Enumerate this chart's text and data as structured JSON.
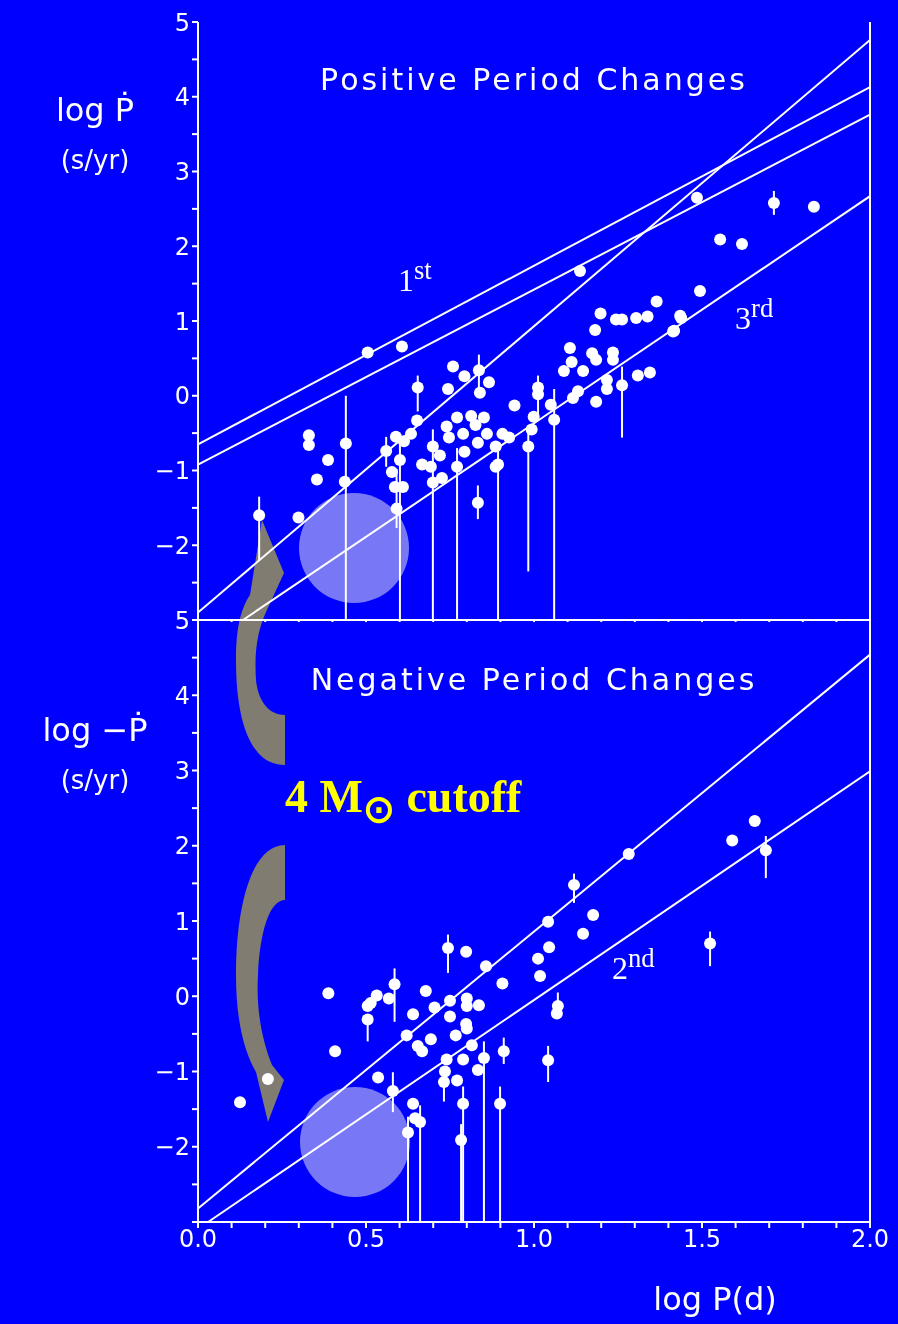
{
  "chart_data": [
    {
      "type": "scatter",
      "title": "Positive Period Changes",
      "ylabel": "log Ṗ (s/yr)",
      "tick_labels": "y",
      "marker": "circle",
      "xlim": [
        0,
        2
      ],
      "ylim": [
        -3,
        5
      ],
      "xticks": [
        {
          "value": 0,
          "label": null
        },
        {
          "value": 0.1,
          "label": null
        },
        {
          "value": 0.2,
          "label": null
        },
        {
          "value": 0.3,
          "label": null
        },
        {
          "value": 0.4,
          "label": null
        },
        {
          "value": 0.5,
          "label": null
        },
        {
          "value": 0.6,
          "label": null
        },
        {
          "value": 0.7,
          "label": null
        },
        {
          "value": 0.8,
          "label": null
        },
        {
          "value": 0.9,
          "label": null
        },
        {
          "value": 1,
          "label": null
        },
        {
          "value": 1.1,
          "label": null
        },
        {
          "value": 1.2,
          "label": null
        },
        {
          "value": 1.3,
          "label": null
        },
        {
          "value": 1.4,
          "label": null
        },
        {
          "value": 1.5,
          "label": null
        },
        {
          "value": 1.6,
          "label": null
        },
        {
          "value": 1.7,
          "label": null
        },
        {
          "value": 1.8,
          "label": null
        },
        {
          "value": 1.9,
          "label": null
        },
        {
          "value": 2,
          "label": null
        }
      ],
      "yticks": [
        {
          "value": -3,
          "label": null
        },
        {
          "value": -2.5,
          "label": null
        },
        {
          "value": -2,
          "label": "−2"
        },
        {
          "value": -1.5,
          "label": null
        },
        {
          "value": -1,
          "label": "−1"
        },
        {
          "value": -0.5,
          "label": null
        },
        0,
        {
          "value": 0.5,
          "label": null
        },
        1,
        {
          "value": 1.5,
          "label": null
        },
        2,
        {
          "value": 2.5,
          "label": null
        },
        3,
        {
          "value": 3.5,
          "label": null
        },
        4,
        {
          "value": 4.5,
          "label": null
        },
        5
      ],
      "annotations": [
        "1$^{st}$",
        "3$^{rd}$"
      ],
      "series": [
        {
          "type": "scatter",
          "color": "#ffffff",
          "x": [
            1.485,
            1.714,
            1.833,
            1.554,
            1.619,
            1.137,
            1.494,
            1.438,
            1.414,
            1.198,
            1.244,
            1.262,
            1.304,
            1.338,
            1.365,
            1.435,
            1.417,
            1.182,
            1.107,
            1.112,
            1.089,
            1.146,
            1.173,
            1.185,
            1.235,
            1.235,
            1.309,
            1.345,
            1.217,
            1.262,
            1.217,
            1.131,
            1.116,
            1.185,
            0.505,
            0.607,
            0.654,
            0.744,
            0.759,
            0.793,
            0.836,
            0.839,
            0.866,
            0.942,
            1.012,
            1.012,
            1.05,
            1.06,
            0.999,
            0.993,
            0.983,
            0.33,
            0.33,
            0.387,
            0.44,
            0.437,
            0.354,
            0.182,
            0.299,
            0.56,
            0.589,
            0.601,
            0.61,
            0.586,
            0.591,
            0.577,
            0.613,
            0.634,
            0.652,
            0.699,
            0.693,
            0.699,
            0.726,
            0.667,
            0.72,
            0.74,
            0.747,
            0.771,
            0.771,
            0.789,
            0.793,
            0.813,
            0.826,
            0.833,
            0.851,
            0.86,
            0.886,
            0.893,
            0.906,
            0.926,
            0.886,
            0.833
          ],
          "values": [
            2.65,
            2.58,
            2.53,
            2.09,
            2.03,
            1.67,
            1.4,
            1.04,
            0.86,
            1.1,
            1.02,
            1.02,
            1.04,
            1.06,
            1.26,
            1.07,
            0.87,
            0.88,
            0.64,
            0.45,
            0.33,
            0.33,
            0.57,
            0.48,
            0.58,
            0.48,
            0.27,
            0.31,
            0.21,
            0.14,
            0.09,
            0.06,
            -0.03,
            -0.08,
            0.58,
            0.66,
            0.11,
            0.09,
            0.39,
            0.26,
            0.34,
            0.04,
            0.18,
            -0.13,
            0.11,
            0.02,
            -0.12,
            -0.32,
            -0.28,
            -0.45,
            -0.68,
            -0.53,
            -0.66,
            -0.86,
            -0.64,
            -1.15,
            -1.12,
            -1.6,
            -1.63,
            -0.74,
            -0.55,
            -0.86,
            -1.22,
            -1.22,
            -1.51,
            -1.02,
            -0.61,
            -0.51,
            -0.33,
            -0.68,
            -0.95,
            -1.16,
            -1.1,
            -0.92,
            -0.8,
            -0.41,
            -0.56,
            -0.29,
            -0.95,
            -0.51,
            -0.75,
            -0.27,
            -0.39,
            -0.63,
            -0.29,
            -0.51,
            -0.68,
            -0.92,
            -0.51,
            -0.56,
            -0.95,
            -1.43
          ],
          "errors": [
            null,
            [
              2.42,
              2.74
            ],
            null,
            null,
            null,
            null,
            null,
            null,
            null,
            null,
            null,
            null,
            null,
            null,
            null,
            null,
            null,
            null,
            null,
            null,
            null,
            null,
            null,
            null,
            null,
            null,
            null,
            null,
            null,
            [
              -0.56,
              0.39
            ],
            null,
            null,
            null,
            null,
            null,
            null,
            [
              -0.21,
              0.27
            ],
            null,
            null,
            null,
            [
              0.1,
              0.55
            ],
            null,
            null,
            null,
            [
              -0.27,
              0.27
            ],
            null,
            null,
            [
              -3,
              0.09
            ],
            null,
            null,
            [
              -2.35,
              -0.45
            ],
            null,
            null,
            null,
            [
              -3,
              0
            ],
            null,
            null,
            [
              -2.2,
              -1.35
            ],
            null,
            [
              -0.95,
              -0.55
            ],
            null,
            [
              -3,
              -0.6
            ],
            null,
            null,
            [
              -1.77,
              -0.98
            ],
            null,
            null,
            null,
            null,
            [
              -3,
              -0.45
            ],
            null,
            null,
            null,
            null,
            null,
            null,
            null,
            null,
            [
              -3,
              -0.7
            ],
            null,
            null,
            null,
            null,
            null,
            null,
            null,
            null,
            [
              -3,
              -0.7
            ],
            null,
            null,
            null,
            [
              -1.65,
              -1.2
            ]
          ]
        },
        {
          "type": "line",
          "color": "#ffffff",
          "line_style": "solid",
          "marker": "none",
          "x": [
            0,
            2
          ],
          "values": [
            -0.65,
            4.13
          ]
        },
        {
          "type": "line",
          "color": "#ffffff",
          "line_style": "solid",
          "marker": "none",
          "x": [
            0,
            2
          ],
          "values": [
            -0.92,
            3.76
          ]
        },
        {
          "type": "line",
          "color": "#ffffff",
          "line_style": "solid",
          "marker": "none",
          "x": [
            0,
            2
          ],
          "values": [
            -2.9,
            4.76
          ]
        },
        {
          "type": "line",
          "color": "#ffffff",
          "line_style": "solid",
          "marker": "none",
          "x": [
            0.134,
            2
          ],
          "values": [
            -3,
            2.67
          ]
        }
      ]
    },
    {
      "type": "scatter",
      "title": "Negative Period Changes",
      "ylabel": "log −Ṗ (s/yr)",
      "xlabel": "log P(d)",
      "marker": "circle",
      "xlim": [
        0,
        2
      ],
      "ylim": [
        -3,
        5
      ],
      "xticks": [
        {
          "value": 0,
          "label": "0.0"
        },
        {
          "value": 0.1,
          "label": null
        },
        {
          "value": 0.2,
          "label": null
        },
        {
          "value": 0.3,
          "label": null
        },
        {
          "value": 0.4,
          "label": null
        },
        {
          "value": 0.5,
          "label": "0.5"
        },
        {
          "value": 0.6,
          "label": null
        },
        {
          "value": 0.7,
          "label": null
        },
        {
          "value": 0.8,
          "label": null
        },
        {
          "value": 0.9,
          "label": null
        },
        {
          "value": 1,
          "label": "1.0"
        },
        {
          "value": 1.1,
          "label": null
        },
        {
          "value": 1.2,
          "label": null
        },
        {
          "value": 1.3,
          "label": null
        },
        {
          "value": 1.4,
          "label": null
        },
        {
          "value": 1.5,
          "label": "1.5"
        },
        {
          "value": 1.6,
          "label": null
        },
        {
          "value": 1.7,
          "label": null
        },
        {
          "value": 1.8,
          "label": null
        },
        {
          "value": 1.9,
          "label": null
        },
        {
          "value": 2,
          "label": "2.0"
        }
      ],
      "yticks": [
        {
          "value": -3,
          "label": null
        },
        {
          "value": -2.5,
          "label": null
        },
        {
          "value": -2,
          "label": "−2"
        },
        {
          "value": -1.5,
          "label": null
        },
        {
          "value": -1,
          "label": "−1"
        },
        {
          "value": -0.5,
          "label": null
        },
        0,
        {
          "value": 0.5,
          "label": null
        },
        1,
        {
          "value": 1.5,
          "label": null
        },
        2,
        {
          "value": 2.5,
          "label": null
        },
        3,
        {
          "value": 3.5,
          "label": null
        },
        4,
        {
          "value": 4.5,
          "label": null
        },
        5
      ],
      "annotations": [
        "2$^{nd}$",
        "4 M$_{⊙}$ cutoff"
      ],
      "series": [
        {
          "type": "scatter",
          "color": "#ffffff",
          "x": [
            1.282,
            1.59,
            1.657,
            1.69,
            1.119,
            1.176,
            1.042,
            1.146,
            1.524,
            1.045,
            1.012,
            1.018,
            1.071,
            1.068,
            1.042,
            0.906,
            0.857,
            0.798,
            0.744,
            0.678,
            0.585,
            0.568,
            0.532,
            0.514,
            0.505,
            0.505,
            0.388,
            0.408,
            0.125,
            0.208,
            0.536,
            0.58,
            0.64,
            0.704,
            0.75,
            0.75,
            0.8,
            0.8,
            0.836,
            0.798,
            0.8,
            0.693,
            0.621,
            0.654,
            0.667,
            0.767,
            0.815,
            0.74,
            0.789,
            0.851,
            0.91,
            0.833,
            0.735,
            0.732,
            0.771,
            0.789,
            0.899,
            0.64,
            0.646,
            0.661,
            0.625,
            0.783
          ],
          "values": [
            1.89,
            2.07,
            2.33,
            1.94,
            1.48,
            1.08,
            0.99,
            0.83,
            0.7,
            0.65,
            0.5,
            0.27,
            -0.13,
            -0.23,
            -0.85,
            0.17,
            0.4,
            0.59,
            0.64,
            0.07,
            0.16,
            -0.03,
            0.01,
            -0.09,
            -0.13,
            -0.31,
            0.04,
            -0.73,
            -1.41,
            -1.1,
            -1.08,
            -1.26,
            -0.24,
            -0.15,
            -0.06,
            -0.27,
            -0.03,
            -0.13,
            -0.12,
            -0.37,
            -0.43,
            -0.57,
            -0.52,
            -0.66,
            -0.73,
            -0.52,
            -0.65,
            -0.84,
            -0.84,
            -0.82,
            -0.73,
            -0.98,
            -1.0,
            -1.14,
            -1.12,
            -1.43,
            -1.43,
            -1.43,
            -1.62,
            -1.67,
            -1.81,
            -1.91
          ],
          "errors": [
            null,
            null,
            null,
            [
              1.57,
              2.13
            ],
            [
              1.24,
              1.63
            ],
            null,
            null,
            null,
            [
              0.4,
              0.86
            ],
            null,
            null,
            null,
            [
              -0.3,
              0.05
            ],
            null,
            [
              -1.14,
              -0.66
            ],
            null,
            null,
            null,
            [
              0.31,
              0.82
            ],
            null,
            [
              -0.34,
              0.37
            ],
            null,
            null,
            null,
            null,
            [
              -0.6,
              -0.31
            ],
            null,
            null,
            null,
            null,
            null,
            [
              -1.54,
              -1.01
            ],
            null,
            null,
            null,
            null,
            null,
            null,
            null,
            null,
            null,
            null,
            null,
            null,
            null,
            null,
            null,
            null,
            null,
            [
              -3,
              -0.6
            ],
            [
              -0.9,
              -0.55
            ],
            null,
            null,
            [
              -1.4,
              -0.96
            ],
            null,
            [
              -3,
              -1.2
            ],
            [
              -3,
              -1.2
            ],
            null,
            null,
            [
              -3,
              -1.45
            ],
            [
              -3,
              -1.6
            ],
            [
              -3,
              -1.7
            ]
          ]
        },
        {
          "type": "line",
          "color": "#ffffff",
          "line_style": "solid",
          "marker": "none",
          "x": [
            0,
            2
          ],
          "values": [
            -2.82,
            4.54
          ]
        },
        {
          "type": "line",
          "color": "#ffffff",
          "line_style": "solid",
          "marker": "none",
          "x": [
            0.03,
            2
          ],
          "values": [
            -3,
            2.99
          ]
        }
      ]
    }
  ]
}
